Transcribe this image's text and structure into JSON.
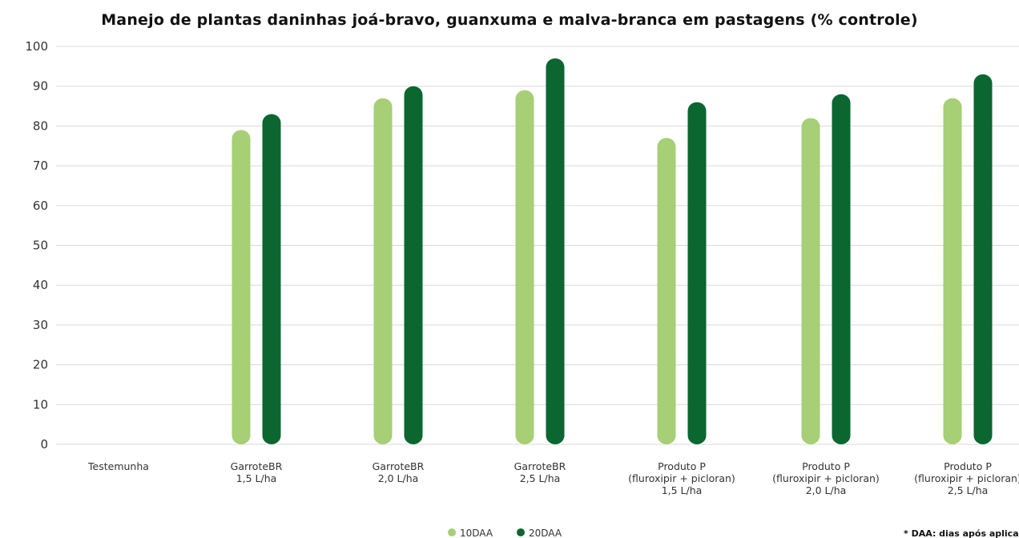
{
  "chart_data": {
    "type": "bar",
    "title": "Manejo de plantas daninhas joá-bravo, guanxuma e malva-branca em pastagens (% controle)",
    "categories": [
      [
        "Testemunha"
      ],
      [
        "GarroteBR",
        "1,5 L/ha"
      ],
      [
        "GarroteBR",
        "2,0 L/ha"
      ],
      [
        "GarroteBR",
        "2,5 L/ha"
      ],
      [
        "Produto P",
        "(fluroxipir + picloran)",
        "1,5 L/ha"
      ],
      [
        "Produto P",
        "(fluroxipir + picloran)",
        "2,0 L/ha"
      ],
      [
        "Produto P",
        "(fluroxipir + picloran)",
        "2,5 L/ha"
      ]
    ],
    "series": [
      {
        "name": "10DAA",
        "color": "#a6cf76",
        "values": [
          0,
          79,
          87,
          89,
          77,
          82,
          87
        ]
      },
      {
        "name": "20DAA",
        "color": "#0b6630",
        "values": [
          0,
          83,
          90,
          97,
          86,
          88,
          93
        ]
      }
    ],
    "yticks": [
      "0",
      "10",
      "20",
      "30",
      "40",
      "50",
      "60",
      "70",
      "80",
      "90",
      "100"
    ],
    "ylim": [
      0,
      100
    ],
    "grid": true,
    "legend_position": "bottom",
    "footnote": "* DAA: dias após aplicação"
  }
}
